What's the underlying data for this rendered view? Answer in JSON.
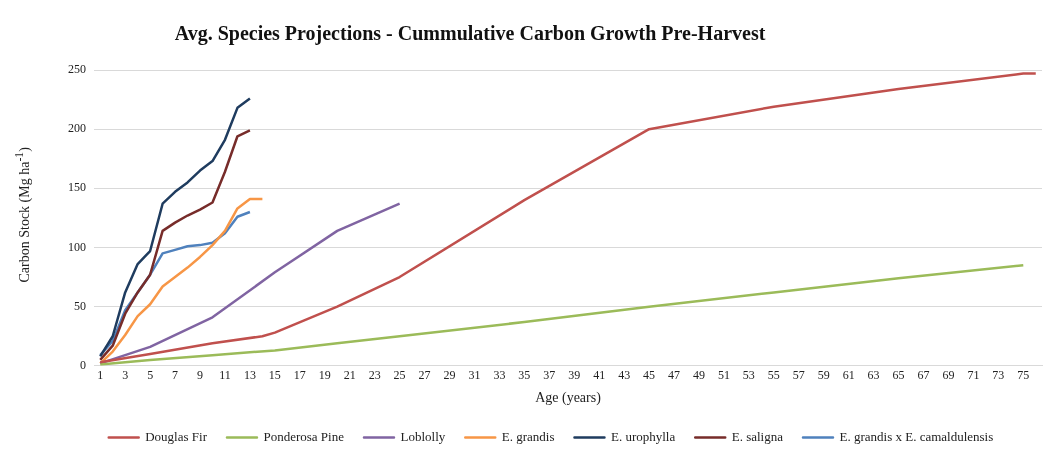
{
  "chart_data": {
    "type": "line",
    "title": "Avg. Species Projections - Cummulative Carbon Growth Pre-Harvest",
    "xlabel": "Age (years)",
    "ylabel": "Carbon Stock (Mg ha$^{-1}$)",
    "xlim": [
      0.5,
      76.5
    ],
    "xticks": [
      1,
      3,
      5,
      7,
      9,
      11,
      13,
      15,
      17,
      19,
      21,
      23,
      25,
      27,
      29,
      31,
      33,
      35,
      37,
      39,
      41,
      43,
      45,
      47,
      49,
      51,
      53,
      55,
      57,
      59,
      61,
      63,
      65,
      67,
      69,
      71,
      73,
      75
    ],
    "ylim": [
      0,
      250
    ],
    "yticks": [
      0,
      50,
      100,
      150,
      200,
      250
    ],
    "grid": "y",
    "legend": "bottom",
    "marker": "none",
    "line_style": "solid",
    "series": [
      {
        "name": "Douglas Fir",
        "color": "#c0504d",
        "x": [
          1,
          5,
          10,
          14,
          15,
          20,
          25,
          35,
          45,
          55,
          65,
          75,
          76
        ],
        "values": [
          3,
          10,
          19,
          25,
          28,
          50,
          75,
          140,
          200,
          219,
          234,
          247,
          247
        ]
      },
      {
        "name": "Ponderosa Pine",
        "color": "#9bbb59",
        "x": [
          1,
          5,
          10,
          15,
          20,
          25,
          35,
          45,
          55,
          65,
          75
        ],
        "values": [
          1,
          5,
          9,
          13,
          19,
          25,
          37,
          50,
          62,
          74,
          85
        ]
      },
      {
        "name": "Loblolly",
        "color": "#8064a2",
        "x": [
          1,
          5,
          10,
          15,
          20,
          25
        ],
        "values": [
          2,
          16,
          41,
          79,
          114,
          137
        ]
      },
      {
        "name": "E. grandis",
        "color": "#f79646",
        "x": [
          1,
          2,
          3,
          4,
          5,
          6,
          7,
          8,
          9,
          10,
          11,
          12,
          13,
          14
        ],
        "values": [
          2,
          12,
          26,
          42,
          52,
          67,
          75,
          83,
          92,
          102,
          114,
          133,
          141,
          141
        ]
      },
      {
        "name": "E. urophylla",
        "color": "#1f3c5f",
        "x": [
          1,
          2,
          3,
          4,
          5,
          6,
          7,
          8,
          9,
          10,
          11,
          12,
          13
        ],
        "values": [
          8,
          25,
          62,
          86,
          97,
          137,
          147,
          155,
          165,
          173,
          191,
          218,
          226
        ]
      },
      {
        "name": "E. saligna",
        "color": "#772c2a",
        "x": [
          1,
          2,
          3,
          4,
          5,
          6,
          7,
          8,
          9,
          10,
          11,
          12,
          13
        ],
        "values": [
          5,
          17,
          44,
          62,
          77,
          114,
          121,
          127,
          132,
          138,
          164,
          194,
          199
        ]
      },
      {
        "name": "E. grandis x E. camaldulensis",
        "color": "#4f81bd",
        "x": [
          1,
          2,
          3,
          4,
          5,
          6,
          7,
          8,
          9,
          10,
          11,
          12,
          13
        ],
        "values": [
          9,
          21,
          47,
          62,
          77,
          95,
          98,
          101,
          102,
          104,
          112,
          126,
          130
        ]
      }
    ]
  }
}
